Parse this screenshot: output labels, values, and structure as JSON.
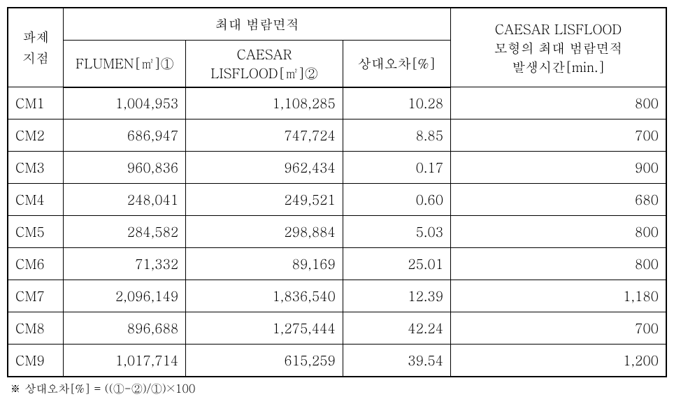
{
  "headers": {
    "location_line1": "파제",
    "location_line2": "지점",
    "max_flood_area": "최대 범람면적",
    "flumen": "FLUMEN[㎡]①",
    "caesar_line1": "CAESAR",
    "caesar_line2": "LISFLOOD[㎡]②",
    "rel_error": "상대오차[%]",
    "time_line1": "CAESAR LISFLOOD",
    "time_line2": "모형의 최대 범람면적",
    "time_line3": "발생시간[min.]"
  },
  "rows": [
    {
      "label": "CM1",
      "flumen": "1,004,953",
      "caesar": "1,108,285",
      "error": "10.28",
      "time": "800"
    },
    {
      "label": "CM2",
      "flumen": "686,947",
      "caesar": "747,724",
      "error": "8.85",
      "time": "700"
    },
    {
      "label": "CM3",
      "flumen": "960,836",
      "caesar": "962,434",
      "error": "0.17",
      "time": "900"
    },
    {
      "label": "CM4",
      "flumen": "248,041",
      "caesar": "249,521",
      "error": "0.60",
      "time": "680"
    },
    {
      "label": "CM5",
      "flumen": "284,582",
      "caesar": "298,884",
      "error": "5.03",
      "time": "800"
    },
    {
      "label": "CM6",
      "flumen": "71,332",
      "caesar": "89,169",
      "error": "25.01",
      "time": "800"
    },
    {
      "label": "CM7",
      "flumen": "2,096,149",
      "caesar": "1,836,540",
      "error": "12.39",
      "time": "1,180"
    },
    {
      "label": "CM8",
      "flumen": "896,688",
      "caesar": "1,275,444",
      "error": "42.24",
      "time": "700"
    },
    {
      "label": "CM9",
      "flumen": "1,017,714",
      "caesar": "615,259",
      "error": "39.54",
      "time": "1,200"
    }
  ],
  "footnote": "※ 상대오차[%] = ((①-②)/①)×100"
}
